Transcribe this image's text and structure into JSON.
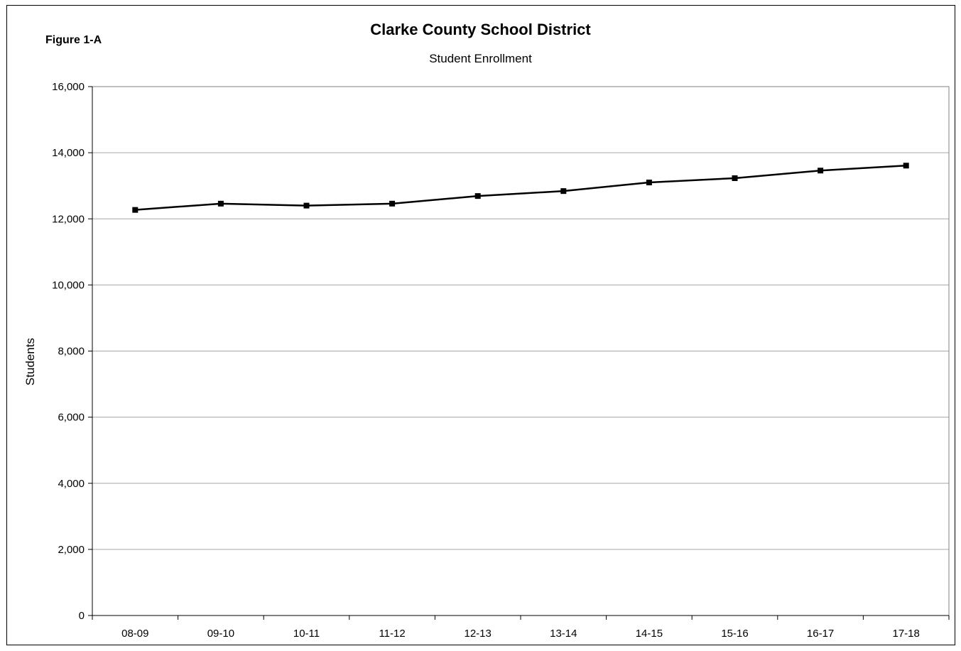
{
  "figure_label": "Figure 1-A",
  "chart_data": {
    "type": "line",
    "title": "Clarke County School District",
    "subtitle": "Student Enrollment",
    "xlabel": "",
    "ylabel": "Students",
    "categories": [
      "08-09",
      "09-10",
      "10-11",
      "11-12",
      "12-13",
      "13-14",
      "14-15",
      "15-16",
      "16-17",
      "17-18"
    ],
    "series": [
      {
        "values": [
          12270,
          12460,
          12400,
          12460,
          12690,
          12840,
          13100,
          13230,
          13460,
          13610
        ]
      }
    ],
    "ylim": [
      0,
      16000
    ],
    "yticks": [
      0,
      2000,
      4000,
      6000,
      8000,
      10000,
      12000,
      14000,
      16000
    ],
    "ytick_labels": [
      "0",
      "2,000",
      "4,000",
      "6,000",
      "8,000",
      "10,000",
      "12,000",
      "14,000",
      "16,000"
    ],
    "grid": true,
    "legend": "none",
    "colors": {
      "line": "#000000",
      "marker": "#000000",
      "grid": "#a6a6a6",
      "plot_border": "#808080"
    }
  }
}
